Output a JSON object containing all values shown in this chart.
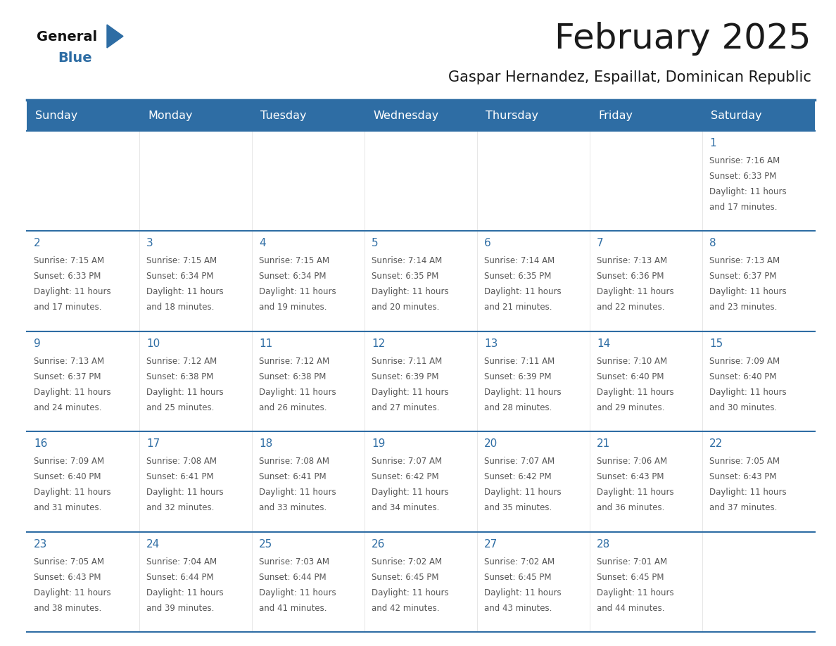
{
  "title": "February 2025",
  "subtitle": "Gaspar Hernandez, Espaillat, Dominican Republic",
  "days_of_week": [
    "Sunday",
    "Monday",
    "Tuesday",
    "Wednesday",
    "Thursday",
    "Friday",
    "Saturday"
  ],
  "header_bg": "#2E6DA4",
  "header_text": "#FFFFFF",
  "cell_bg": "#FFFFFF",
  "cell_bg_alt": "#F5F5F5",
  "border_color": "#2E6DA4",
  "day_num_color": "#2E6DA4",
  "cell_text_color": "#555555",
  "title_color": "#1a1a1a",
  "subtitle_color": "#1a1a1a",
  "logo_general_color": "#111111",
  "logo_blue_color": "#2E6DA4",
  "calendar_data": [
    [
      null,
      null,
      null,
      null,
      null,
      null,
      {
        "day": 1,
        "sunrise": "7:16 AM",
        "sunset": "6:33 PM",
        "daylight_line1": "Daylight: 11 hours",
        "daylight_line2": "and 17 minutes."
      }
    ],
    [
      {
        "day": 2,
        "sunrise": "7:15 AM",
        "sunset": "6:33 PM",
        "daylight_line1": "Daylight: 11 hours",
        "daylight_line2": "and 17 minutes."
      },
      {
        "day": 3,
        "sunrise": "7:15 AM",
        "sunset": "6:34 PM",
        "daylight_line1": "Daylight: 11 hours",
        "daylight_line2": "and 18 minutes."
      },
      {
        "day": 4,
        "sunrise": "7:15 AM",
        "sunset": "6:34 PM",
        "daylight_line1": "Daylight: 11 hours",
        "daylight_line2": "and 19 minutes."
      },
      {
        "day": 5,
        "sunrise": "7:14 AM",
        "sunset": "6:35 PM",
        "daylight_line1": "Daylight: 11 hours",
        "daylight_line2": "and 20 minutes."
      },
      {
        "day": 6,
        "sunrise": "7:14 AM",
        "sunset": "6:35 PM",
        "daylight_line1": "Daylight: 11 hours",
        "daylight_line2": "and 21 minutes."
      },
      {
        "day": 7,
        "sunrise": "7:13 AM",
        "sunset": "6:36 PM",
        "daylight_line1": "Daylight: 11 hours",
        "daylight_line2": "and 22 minutes."
      },
      {
        "day": 8,
        "sunrise": "7:13 AM",
        "sunset": "6:37 PM",
        "daylight_line1": "Daylight: 11 hours",
        "daylight_line2": "and 23 minutes."
      }
    ],
    [
      {
        "day": 9,
        "sunrise": "7:13 AM",
        "sunset": "6:37 PM",
        "daylight_line1": "Daylight: 11 hours",
        "daylight_line2": "and 24 minutes."
      },
      {
        "day": 10,
        "sunrise": "7:12 AM",
        "sunset": "6:38 PM",
        "daylight_line1": "Daylight: 11 hours",
        "daylight_line2": "and 25 minutes."
      },
      {
        "day": 11,
        "sunrise": "7:12 AM",
        "sunset": "6:38 PM",
        "daylight_line1": "Daylight: 11 hours",
        "daylight_line2": "and 26 minutes."
      },
      {
        "day": 12,
        "sunrise": "7:11 AM",
        "sunset": "6:39 PM",
        "daylight_line1": "Daylight: 11 hours",
        "daylight_line2": "and 27 minutes."
      },
      {
        "day": 13,
        "sunrise": "7:11 AM",
        "sunset": "6:39 PM",
        "daylight_line1": "Daylight: 11 hours",
        "daylight_line2": "and 28 minutes."
      },
      {
        "day": 14,
        "sunrise": "7:10 AM",
        "sunset": "6:40 PM",
        "daylight_line1": "Daylight: 11 hours",
        "daylight_line2": "and 29 minutes."
      },
      {
        "day": 15,
        "sunrise": "7:09 AM",
        "sunset": "6:40 PM",
        "daylight_line1": "Daylight: 11 hours",
        "daylight_line2": "and 30 minutes."
      }
    ],
    [
      {
        "day": 16,
        "sunrise": "7:09 AM",
        "sunset": "6:40 PM",
        "daylight_line1": "Daylight: 11 hours",
        "daylight_line2": "and 31 minutes."
      },
      {
        "day": 17,
        "sunrise": "7:08 AM",
        "sunset": "6:41 PM",
        "daylight_line1": "Daylight: 11 hours",
        "daylight_line2": "and 32 minutes."
      },
      {
        "day": 18,
        "sunrise": "7:08 AM",
        "sunset": "6:41 PM",
        "daylight_line1": "Daylight: 11 hours",
        "daylight_line2": "and 33 minutes."
      },
      {
        "day": 19,
        "sunrise": "7:07 AM",
        "sunset": "6:42 PM",
        "daylight_line1": "Daylight: 11 hours",
        "daylight_line2": "and 34 minutes."
      },
      {
        "day": 20,
        "sunrise": "7:07 AM",
        "sunset": "6:42 PM",
        "daylight_line1": "Daylight: 11 hours",
        "daylight_line2": "and 35 minutes."
      },
      {
        "day": 21,
        "sunrise": "7:06 AM",
        "sunset": "6:43 PM",
        "daylight_line1": "Daylight: 11 hours",
        "daylight_line2": "and 36 minutes."
      },
      {
        "day": 22,
        "sunrise": "7:05 AM",
        "sunset": "6:43 PM",
        "daylight_line1": "Daylight: 11 hours",
        "daylight_line2": "and 37 minutes."
      }
    ],
    [
      {
        "day": 23,
        "sunrise": "7:05 AM",
        "sunset": "6:43 PM",
        "daylight_line1": "Daylight: 11 hours",
        "daylight_line2": "and 38 minutes."
      },
      {
        "day": 24,
        "sunrise": "7:04 AM",
        "sunset": "6:44 PM",
        "daylight_line1": "Daylight: 11 hours",
        "daylight_line2": "and 39 minutes."
      },
      {
        "day": 25,
        "sunrise": "7:03 AM",
        "sunset": "6:44 PM",
        "daylight_line1": "Daylight: 11 hours",
        "daylight_line2": "and 41 minutes."
      },
      {
        "day": 26,
        "sunrise": "7:02 AM",
        "sunset": "6:45 PM",
        "daylight_line1": "Daylight: 11 hours",
        "daylight_line2": "and 42 minutes."
      },
      {
        "day": 27,
        "sunrise": "7:02 AM",
        "sunset": "6:45 PM",
        "daylight_line1": "Daylight: 11 hours",
        "daylight_line2": "and 43 minutes."
      },
      {
        "day": 28,
        "sunrise": "7:01 AM",
        "sunset": "6:45 PM",
        "daylight_line1": "Daylight: 11 hours",
        "daylight_line2": "and 44 minutes."
      },
      null
    ]
  ]
}
